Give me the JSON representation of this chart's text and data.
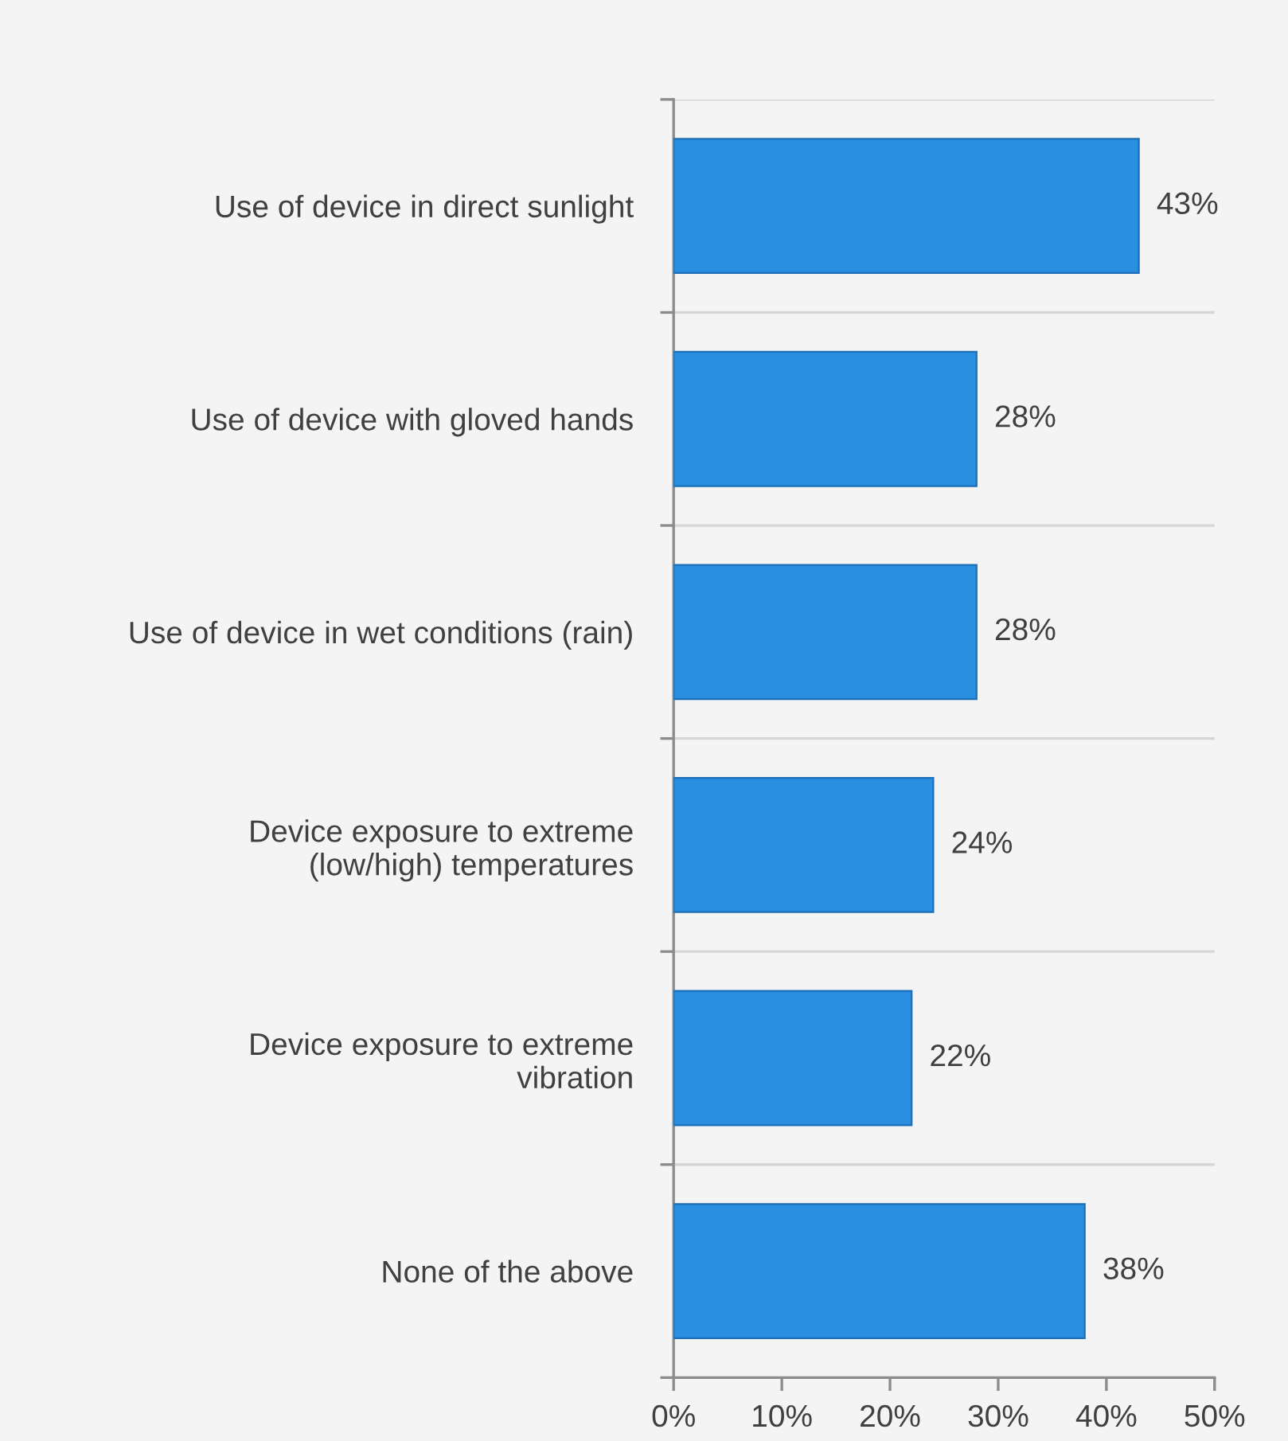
{
  "chart_data": {
    "type": "bar",
    "orientation": "horizontal",
    "categories": [
      "Use of device in direct sunlight",
      "Use of device with gloved hands",
      "Use of device in wet conditions (rain)",
      "Device exposure to extreme\n(low/high) temperatures",
      "Device exposure to extreme\nvibration",
      "None of the above"
    ],
    "values": [
      43,
      28,
      28,
      24,
      22,
      38
    ],
    "value_labels": [
      "43%",
      "28%",
      "28%",
      "24%",
      "22%",
      "38%"
    ],
    "color": "#2a8fe0",
    "xlim": [
      0,
      50
    ],
    "xticks": [
      {
        "value": 0,
        "label": "0%"
      },
      {
        "value": 10,
        "label": "10%"
      },
      {
        "value": 20,
        "label": "20%"
      },
      {
        "value": 30,
        "label": "30%"
      },
      {
        "value": 40,
        "label": "40%"
      },
      {
        "value": 50,
        "label": "50%"
      }
    ],
    "grid": "y"
  }
}
